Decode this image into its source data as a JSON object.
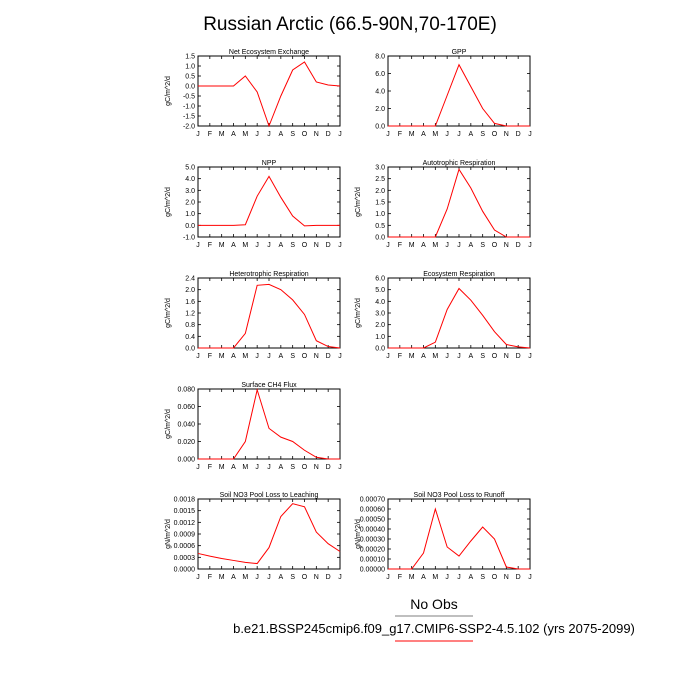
{
  "title": "Russian Arctic (66.5-90N,70-170E)",
  "colors": {
    "series": "#ff0000",
    "axis": "#000000",
    "legend_rule": "#000000"
  },
  "legend": {
    "title": "No Obs",
    "entry": "b.e21.BSSP245cmip6.f09_g17.CMIP6-SSP2-4.5.102 (yrs 2075-2099)"
  },
  "chart_data": [
    {
      "type": "line",
      "title": "Net Ecosystem Exchange",
      "ylabel": "gC/m^2/d",
      "categories": [
        "J",
        "F",
        "M",
        "A",
        "M",
        "J",
        "J",
        "A",
        "S",
        "O",
        "N",
        "D",
        "J"
      ],
      "ylim": [
        -2.0,
        1.5
      ],
      "yticks": [
        "1.5",
        "1.0",
        "0.5",
        "0.0",
        "-0.5",
        "-1.0",
        "-1.5",
        "-2.0"
      ],
      "ytick_values": [
        1.5,
        1.0,
        0.5,
        0.0,
        -0.5,
        -1.0,
        -1.5,
        -2.0
      ],
      "values": [
        0.0,
        0.0,
        0.0,
        0.0,
        0.5,
        -0.3,
        -2.0,
        -0.5,
        0.8,
        1.2,
        0.2,
        0.05,
        0.0
      ]
    },
    {
      "type": "line",
      "title": "GPP",
      "ylabel": "",
      "categories": [
        "J",
        "F",
        "M",
        "A",
        "M",
        "J",
        "J",
        "A",
        "S",
        "O",
        "N",
        "D",
        "J"
      ],
      "ylim": [
        0.0,
        8.0
      ],
      "yticks": [
        "8.0",
        "6.0",
        "4.0",
        "2.0",
        "0.0"
      ],
      "ytick_values": [
        8.0,
        6.0,
        4.0,
        2.0,
        0.0
      ],
      "values": [
        0.0,
        0.0,
        0.0,
        0.0,
        0.0,
        3.5,
        7.0,
        4.5,
        2.0,
        0.3,
        0.0,
        0.0,
        0.0
      ]
    },
    {
      "type": "line",
      "title": "NPP",
      "ylabel": "gC/m^2/d",
      "categories": [
        "J",
        "F",
        "M",
        "A",
        "M",
        "J",
        "J",
        "A",
        "S",
        "O",
        "N",
        "D",
        "J"
      ],
      "ylim": [
        -1.0,
        5.0
      ],
      "yticks": [
        "5.0",
        "4.0",
        "3.0",
        "2.0",
        "1.0",
        "0.0",
        "-1.0"
      ],
      "ytick_values": [
        5.0,
        4.0,
        3.0,
        2.0,
        1.0,
        0.0,
        -1.0
      ],
      "values": [
        0.0,
        0.0,
        0.0,
        0.0,
        0.05,
        2.5,
        4.2,
        2.4,
        0.8,
        -0.05,
        0.0,
        0.0,
        0.0
      ]
    },
    {
      "type": "line",
      "title": "Autotrophic Respiration",
      "ylabel": "gC/m^2/d",
      "categories": [
        "J",
        "F",
        "M",
        "A",
        "M",
        "J",
        "J",
        "A",
        "S",
        "O",
        "N",
        "D",
        "J"
      ],
      "ylim": [
        0.0,
        3.0
      ],
      "yticks": [
        "3.0",
        "2.5",
        "2.0",
        "1.5",
        "1.0",
        "0.5",
        "0.0"
      ],
      "ytick_values": [
        3.0,
        2.5,
        2.0,
        1.5,
        1.0,
        0.5,
        0.0
      ],
      "values": [
        0.0,
        0.0,
        0.0,
        0.0,
        0.0,
        1.2,
        2.9,
        2.1,
        1.1,
        0.3,
        0.0,
        0.0,
        0.0
      ]
    },
    {
      "type": "line",
      "title": "Heterotrophic Respiration",
      "ylabel": "gC/m^2/d",
      "categories": [
        "J",
        "F",
        "M",
        "A",
        "M",
        "J",
        "J",
        "A",
        "S",
        "O",
        "N",
        "D",
        "J"
      ],
      "ylim": [
        0.0,
        2.4
      ],
      "yticks": [
        "2.4",
        "2.0",
        "1.6",
        "1.2",
        "0.8",
        "0.4",
        "0.0"
      ],
      "ytick_values": [
        2.4,
        2.0,
        1.6,
        1.2,
        0.8,
        0.4,
        0.0
      ],
      "values": [
        0.0,
        0.0,
        0.0,
        0.0,
        0.5,
        2.15,
        2.18,
        2.0,
        1.65,
        1.15,
        0.25,
        0.05,
        0.0
      ]
    },
    {
      "type": "line",
      "title": "Ecosystem Respiration",
      "ylabel": "gC/m^2/d",
      "categories": [
        "J",
        "F",
        "M",
        "A",
        "M",
        "J",
        "J",
        "A",
        "S",
        "O",
        "N",
        "D",
        "J"
      ],
      "ylim": [
        0.0,
        6.0
      ],
      "yticks": [
        "6.0",
        "5.0",
        "4.0",
        "3.0",
        "2.0",
        "1.0",
        "0.0"
      ],
      "ytick_values": [
        6.0,
        5.0,
        4.0,
        3.0,
        2.0,
        1.0,
        0.0
      ],
      "values": [
        0.0,
        0.0,
        0.0,
        0.0,
        0.5,
        3.3,
        5.1,
        4.1,
        2.8,
        1.4,
        0.3,
        0.1,
        0.0
      ]
    },
    {
      "type": "line",
      "title": "Surface CH4 Flux",
      "ylabel": "gC/m^2/d",
      "categories": [
        "J",
        "F",
        "M",
        "A",
        "M",
        "J",
        "J",
        "A",
        "S",
        "O",
        "N",
        "D",
        "J"
      ],
      "ylim": [
        0.0,
        0.08
      ],
      "yticks": [
        "0.080",
        "0.060",
        "0.040",
        "0.020",
        "0.000"
      ],
      "ytick_values": [
        0.08,
        0.06,
        0.04,
        0.02,
        0.0
      ],
      "values": [
        0.0,
        0.0,
        0.0,
        0.0,
        0.02,
        0.079,
        0.035,
        0.025,
        0.02,
        0.01,
        0.002,
        0.0,
        0.0
      ]
    },
    {
      "type": "line",
      "title": "Soil NO3 Pool Loss to Leaching",
      "ylabel": "gN/m^2/d",
      "categories": [
        "J",
        "F",
        "M",
        "A",
        "M",
        "J",
        "J",
        "A",
        "S",
        "O",
        "N",
        "D",
        "J"
      ],
      "ylim": [
        0.0,
        0.0018
      ],
      "yticks": [
        "0.0018",
        "0.0015",
        "0.0012",
        "0.0009",
        "0.0006",
        "0.0003",
        "0.0000"
      ],
      "ytick_values": [
        0.0018,
        0.0015,
        0.0012,
        0.0009,
        0.0006,
        0.0003,
        0.0
      ],
      "values": [
        0.0004,
        0.00033,
        0.00027,
        0.00022,
        0.00017,
        0.00014,
        0.00055,
        0.00135,
        0.00168,
        0.0016,
        0.00095,
        0.00065,
        0.00045
      ]
    },
    {
      "type": "line",
      "title": "Soil NO3 Pool Loss to Runoff",
      "ylabel": "gN/m^2/d",
      "categories": [
        "J",
        "F",
        "M",
        "A",
        "M",
        "J",
        "J",
        "A",
        "S",
        "O",
        "N",
        "D",
        "J"
      ],
      "ylim": [
        0.0,
        0.0007
      ],
      "yticks": [
        "0.00070",
        "0.00060",
        "0.00050",
        "0.00040",
        "0.00030",
        "0.00020",
        "0.00010",
        "0.00000"
      ],
      "ytick_values": [
        0.0007,
        0.0006,
        0.0005,
        0.0004,
        0.0003,
        0.0002,
        0.0001,
        0.0
      ],
      "values": [
        0.0,
        0.0,
        0.0,
        0.00016,
        0.0006,
        0.00022,
        0.00013,
        0.00028,
        0.00042,
        0.0003,
        2e-05,
        0.0,
        0.0
      ]
    }
  ]
}
